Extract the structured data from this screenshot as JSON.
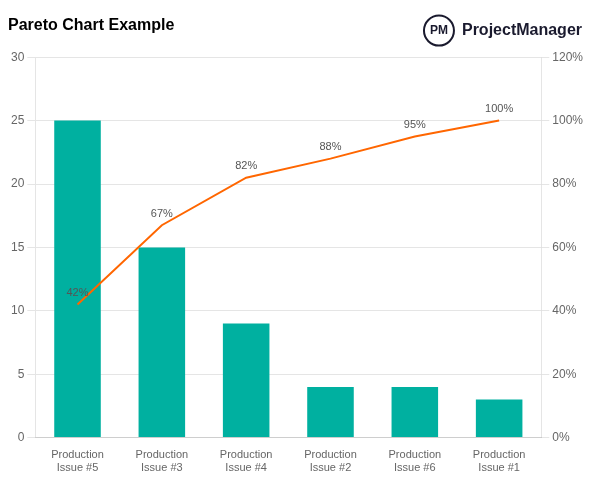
{
  "chart_data": {
    "type": "bar",
    "title": "Pareto Chart Example",
    "annotations": [
      "PM",
      "ProjectManager"
    ],
    "categories": [
      "Production\nIssue #5",
      "Production\nIssue #3",
      "Production\nIssue #4",
      "Production\nIssue #2",
      "Production\nIssue #6",
      "Production\nIssue #1"
    ],
    "series": [
      {
        "type": "bar",
        "color": "#00B0A0",
        "values": [
          25,
          15,
          9,
          4,
          4,
          3
        ]
      },
      {
        "type": "line",
        "axis": "y2",
        "color": "#FF6600",
        "values": [
          42,
          67,
          82,
          88,
          95,
          100
        ],
        "value_labels": [
          "42%",
          "67%",
          "82%",
          "88%",
          "95%",
          "100%"
        ],
        "data_labels": true
      }
    ],
    "ylim": [
      0,
      30
    ],
    "yticks": [
      0,
      5,
      10,
      15,
      20,
      25,
      30
    ],
    "y2lim": [
      0,
      120
    ],
    "y2ticks": [
      {
        "value": 0,
        "label": "0%"
      },
      {
        "value": 20,
        "label": "20%"
      },
      {
        "value": 40,
        "label": "40%"
      },
      {
        "value": 60,
        "label": "60%"
      },
      {
        "value": 80,
        "label": "80%"
      },
      {
        "value": 100,
        "label": "100%"
      },
      {
        "value": 120,
        "label": "120%"
      }
    ],
    "grid": true
  }
}
